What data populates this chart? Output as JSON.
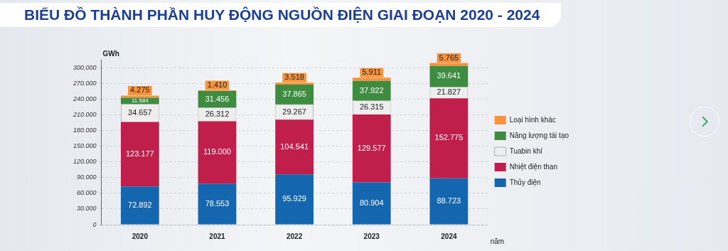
{
  "chart_data": {
    "type": "bar",
    "title": "BIỂU ĐỒ THÀNH PHẦN HUY ĐỘNG NGUỒN ĐIỆN GIAI ĐOẠN 2020 - 2024",
    "xlabel": "năm",
    "ylabel": "GWh",
    "categories": [
      "2020",
      "2021",
      "2022",
      "2023",
      "2024"
    ],
    "stacked": true,
    "series": [
      {
        "name": "Thủy điện",
        "color": "#1466ae",
        "values": [
          72892,
          78553,
          95929,
          80904,
          88723
        ],
        "value_labels": [
          "72.892",
          "78.553",
          "95.929",
          "80.904",
          "88.723"
        ]
      },
      {
        "name": "Nhiệt điện than",
        "color": "#c01f4b",
        "values": [
          123177,
          119000,
          104541,
          129577,
          152775
        ],
        "value_labels": [
          "123.177",
          "119.000",
          "104.541",
          "129.577",
          "152.775"
        ]
      },
      {
        "name": "Tuabin khí",
        "color": "#eeeeee",
        "values": [
          34657,
          26312,
          29267,
          26315,
          21827
        ],
        "value_labels": [
          "34.657",
          "26.312",
          "29.267",
          "26.315",
          "21.827"
        ]
      },
      {
        "name": "Năng lượng tái tạo",
        "color": "#3d8c40",
        "values": [
          11584,
          31456,
          37865,
          37922,
          39641
        ],
        "value_labels": [
          "11.584",
          "31.456",
          "37.865",
          "37.922",
          "39.641"
        ]
      },
      {
        "name": "Loại hình khác",
        "color": "#f7933c",
        "values": [
          4275,
          1410,
          3518,
          5911,
          5765
        ],
        "value_labels": [
          "4.275",
          "1.410",
          "3.518",
          "5.911",
          "5.765"
        ]
      }
    ],
    "ylim": [
      0,
      315000
    ],
    "yticks": [
      0,
      {
        "value": 30000,
        "label": "30.000"
      },
      {
        "value": 60000,
        "label": "60.000"
      },
      {
        "value": 90000,
        "label": "90.000"
      },
      {
        "value": 120000,
        "label": "120.000"
      },
      {
        "value": 150000,
        "label": "150.000"
      },
      {
        "value": 180000,
        "label": "180.000"
      },
      {
        "value": 210000,
        "label": "210.000"
      },
      {
        "value": 240000,
        "label": "240.000"
      },
      {
        "value": 270000,
        "label": "270.000"
      },
      {
        "value": 300000,
        "label": "300.000"
      }
    ],
    "grid": "y",
    "legend": "right"
  }
}
